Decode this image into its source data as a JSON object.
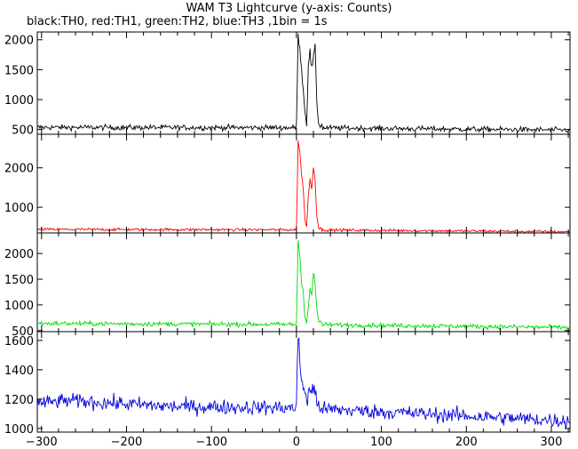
{
  "title": "WAM T3 Lightcurve (y-axis: Counts)",
  "subtitle": "black:TH0, red:TH1, green:TH2, blue:TH3 ,1bin = 1s",
  "chart_data": {
    "type": "line",
    "x": {
      "range": [
        -305,
        322
      ],
      "ticks": [
        -300,
        -200,
        -100,
        0,
        100,
        200,
        300
      ],
      "tick_labels": [
        "−300",
        "−200",
        "−100",
        "0",
        "100",
        "200",
        "300"
      ]
    },
    "panels": [
      {
        "name": "TH0",
        "color": "#000000",
        "ylim": [
          420,
          2130
        ],
        "yticks": [
          500,
          1000,
          1500,
          2000
        ],
        "ytick_labels": [
          "500",
          "1000",
          "1500",
          "2000"
        ],
        "baseline": [
          [
            -305,
            535
          ],
          [
            0,
            530
          ],
          [
            322,
            490
          ]
        ],
        "noise": 45,
        "burst": [
          [
            0,
            540
          ],
          [
            2,
            2050
          ],
          [
            4,
            1900
          ],
          [
            6,
            1500
          ],
          [
            8,
            1200
          ],
          [
            10,
            800
          ],
          [
            12,
            600
          ],
          [
            14,
            1600
          ],
          [
            16,
            1800
          ],
          [
            18,
            1500
          ],
          [
            20,
            1700
          ],
          [
            22,
            1850
          ],
          [
            24,
            1000
          ],
          [
            26,
            600
          ],
          [
            30,
            560
          ]
        ]
      },
      {
        "name": "TH1",
        "color": "#ff0000",
        "ylim": [
          350,
          2850
        ],
        "yticks": [
          1000,
          2000
        ],
        "ytick_labels": [
          "1000",
          "2000"
        ],
        "baseline": [
          [
            -305,
            440
          ],
          [
            0,
            430
          ],
          [
            322,
            380
          ]
        ],
        "noise": 35,
        "burst": [
          [
            0,
            450
          ],
          [
            2,
            2650
          ],
          [
            4,
            2450
          ],
          [
            6,
            1800
          ],
          [
            8,
            1500
          ],
          [
            10,
            700
          ],
          [
            12,
            500
          ],
          [
            14,
            1300
          ],
          [
            16,
            1700
          ],
          [
            18,
            1500
          ],
          [
            20,
            2000
          ],
          [
            22,
            1700
          ],
          [
            24,
            800
          ],
          [
            26,
            500
          ],
          [
            30,
            430
          ]
        ]
      },
      {
        "name": "TH2",
        "color": "#00dd00",
        "ylim": [
          480,
          2400
        ],
        "yticks": [
          500,
          1000,
          1500,
          2000
        ],
        "ytick_labels": [
          "500",
          "1000",
          "1500",
          "2000"
        ],
        "baseline": [
          [
            -305,
            640
          ],
          [
            0,
            620
          ],
          [
            322,
            560
          ]
        ],
        "noise": 45,
        "burst": [
          [
            0,
            650
          ],
          [
            2,
            2250
          ],
          [
            4,
            2000
          ],
          [
            6,
            1400
          ],
          [
            8,
            1300
          ],
          [
            10,
            800
          ],
          [
            12,
            650
          ],
          [
            14,
            1000
          ],
          [
            16,
            1300
          ],
          [
            18,
            1200
          ],
          [
            20,
            1600
          ],
          [
            22,
            1400
          ],
          [
            24,
            900
          ],
          [
            26,
            700
          ],
          [
            30,
            640
          ]
        ]
      },
      {
        "name": "TH3",
        "color": "#0000dd",
        "ylim": [
          975,
          1660
        ],
        "yticks": [
          1000,
          1200,
          1400,
          1600
        ],
        "ytick_labels": [
          "1000",
          "1200",
          "1400",
          "1600"
        ],
        "baseline": [
          [
            -305,
            1170
          ],
          [
            -270,
            1190
          ],
          [
            -150,
            1150
          ],
          [
            0,
            1140
          ],
          [
            150,
            1100
          ],
          [
            322,
            1050
          ]
        ],
        "noise": 50,
        "burst": [
          [
            0,
            1150
          ],
          [
            2,
            1640
          ],
          [
            4,
            1450
          ],
          [
            6,
            1330
          ],
          [
            8,
            1300
          ],
          [
            10,
            1250
          ],
          [
            12,
            1200
          ],
          [
            16,
            1250
          ],
          [
            20,
            1280
          ],
          [
            24,
            1180
          ],
          [
            30,
            1150
          ]
        ]
      }
    ]
  }
}
